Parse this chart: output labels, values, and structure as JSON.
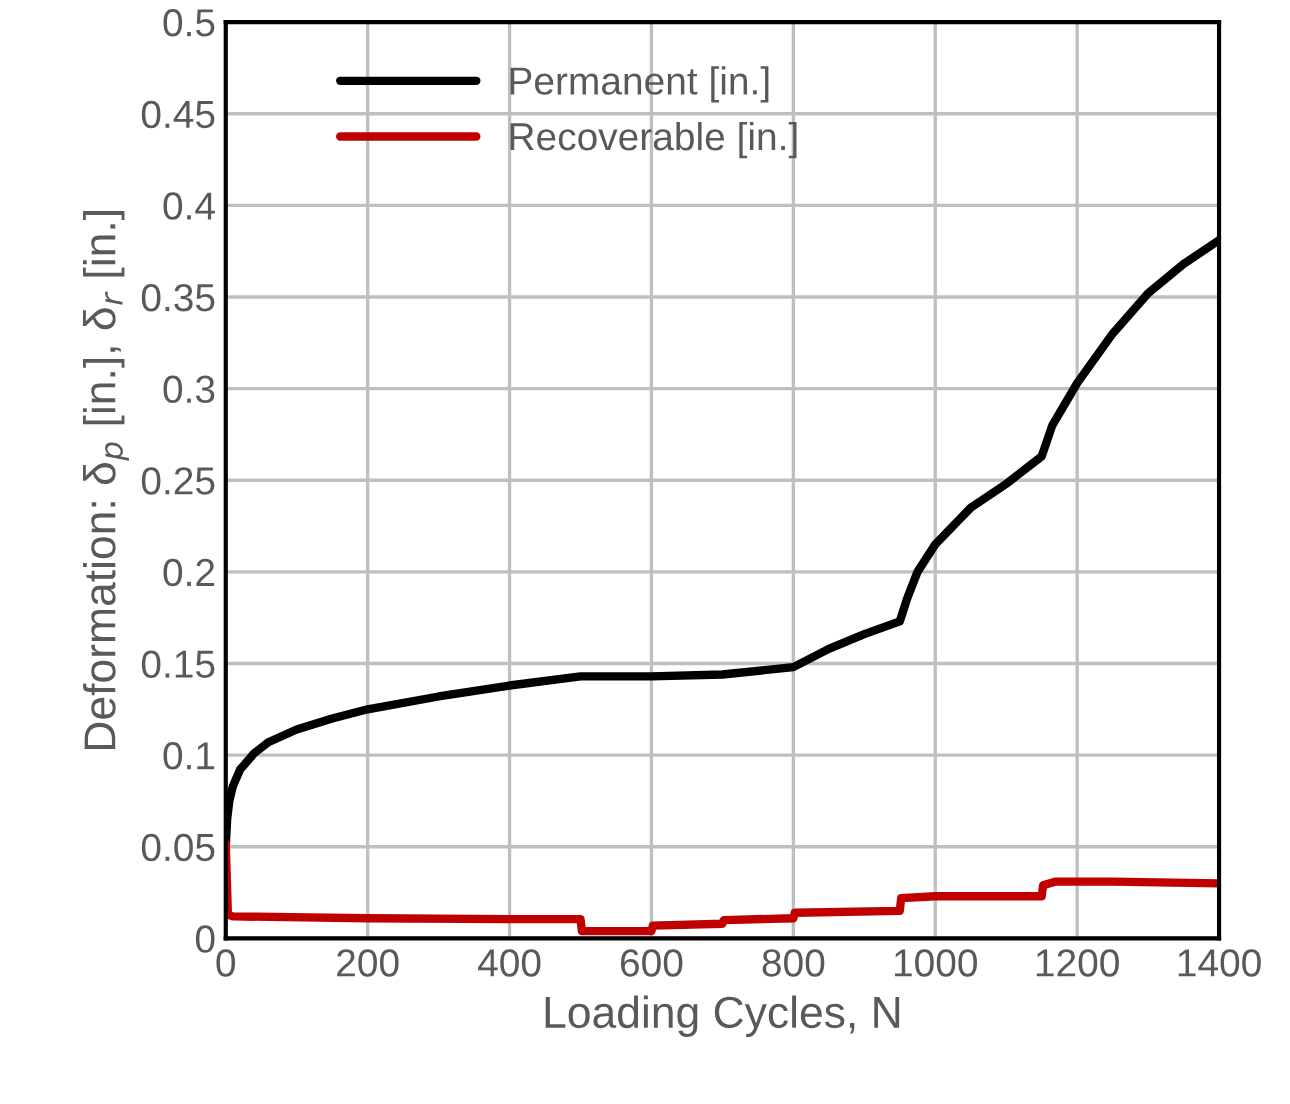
{
  "chart_data": {
    "type": "line",
    "xlabel": "Loading Cycles, N",
    "ylabel": "Deformation: δ$_{p}$ [in.], δ$_{r}$ [in.]",
    "xlim": [
      0,
      1400
    ],
    "xticks": [
      0,
      200,
      400,
      600,
      800,
      1000,
      1200,
      1400
    ],
    "ylim": [
      0,
      0.5
    ],
    "yticks": [
      0,
      0.05,
      0.1,
      0.15,
      0.2,
      0.25,
      0.3,
      0.35,
      0.4,
      0.45,
      0.5
    ],
    "grid": true,
    "legend": "top left",
    "marker": "none",
    "line_style": "solid",
    "series": [
      {
        "name": "Permanent [in.]",
        "color": "#000000",
        "x": [
          0,
          2,
          5,
          10,
          20,
          40,
          60,
          100,
          150,
          200,
          300,
          400,
          500,
          600,
          700,
          800,
          850,
          900,
          950,
          960,
          975,
          1000,
          1050,
          1100,
          1150,
          1165,
          1200,
          1250,
          1300,
          1350,
          1400
        ],
        "values": [
          0.05,
          0.065,
          0.075,
          0.083,
          0.092,
          0.101,
          0.107,
          0.114,
          0.12,
          0.125,
          0.132,
          0.138,
          0.143,
          0.143,
          0.144,
          0.148,
          0.158,
          0.166,
          0.173,
          0.185,
          0.2,
          0.215,
          0.235,
          0.248,
          0.263,
          0.28,
          0.303,
          0.33,
          0.352,
          0.368,
          0.381
        ]
      },
      {
        "name": "Recoverable [in.]",
        "color": "#c00000",
        "x": [
          0,
          3,
          10,
          200,
          400,
          500,
          502,
          600,
          602,
          700,
          702,
          800,
          802,
          950,
          952,
          1000,
          1150,
          1152,
          1170,
          1250,
          1400
        ],
        "values": [
          0.052,
          0.013,
          0.012,
          0.011,
          0.0105,
          0.0105,
          0.004,
          0.004,
          0.007,
          0.008,
          0.01,
          0.011,
          0.014,
          0.015,
          0.022,
          0.023,
          0.023,
          0.029,
          0.031,
          0.031,
          0.03
        ]
      }
    ]
  }
}
